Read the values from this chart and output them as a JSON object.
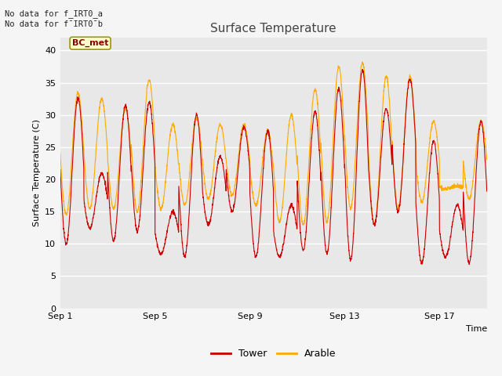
{
  "title": "Surface Temperature",
  "ylabel": "Surface Temperature (C)",
  "xlabel": "Time",
  "annotation_line1": "No data for f_IRT0_a",
  "annotation_line2": "No data for f¯IRT0¯b",
  "bc_met_label": "BC_met",
  "legend_tower": "Tower",
  "legend_arable": "Arable",
  "ylim": [
    0,
    42
  ],
  "yticks": [
    0,
    5,
    10,
    15,
    20,
    25,
    30,
    35,
    40
  ],
  "xtick_labels": [
    "Sep 1",
    "Sep 5",
    "Sep 9",
    "Sep 13",
    "Sep 17"
  ],
  "xtick_positions": [
    0,
    4,
    8,
    12,
    16
  ],
  "color_tower": "#cc0000",
  "color_arable": "#ffaa00",
  "color_bg": "#e8e8e8",
  "color_fig_bg": "#f5f5f5",
  "bc_met_bg": "#ffffcc",
  "bc_met_border": "#999933",
  "title_color": "#444444",
  "grid_color": "#ffffff",
  "n_days": 18,
  "day_peaks_tower": [
    32.5,
    21,
    31.5,
    32.0,
    15,
    30.0,
    23.5,
    28.0,
    27.5,
    16,
    30.5,
    34.0,
    37.0,
    31.0,
    35.5,
    26.0,
    16,
    29.0
  ],
  "day_troughs_tower": [
    10.0,
    12.5,
    10.5,
    12.0,
    8.5,
    8.0,
    13.0,
    15.0,
    8.0,
    8.0,
    9.0,
    8.5,
    7.5,
    13.0,
    15.0,
    7.0,
    8.0,
    7.0
  ],
  "day_peaks_arable": [
    33.5,
    32.5,
    31.0,
    35.5,
    28.5,
    29.5,
    28.5,
    28.5,
    27.5,
    30.0,
    34.0,
    37.5,
    38.0,
    36.0,
    36.0,
    29.0,
    19.0,
    29.0
  ],
  "day_troughs_arable": [
    14.5,
    15.5,
    15.5,
    15.0,
    15.5,
    16.0,
    17.0,
    17.5,
    16.0,
    13.5,
    13.0,
    13.5,
    15.5,
    13.0,
    15.5,
    16.5,
    18.5,
    17.0
  ]
}
